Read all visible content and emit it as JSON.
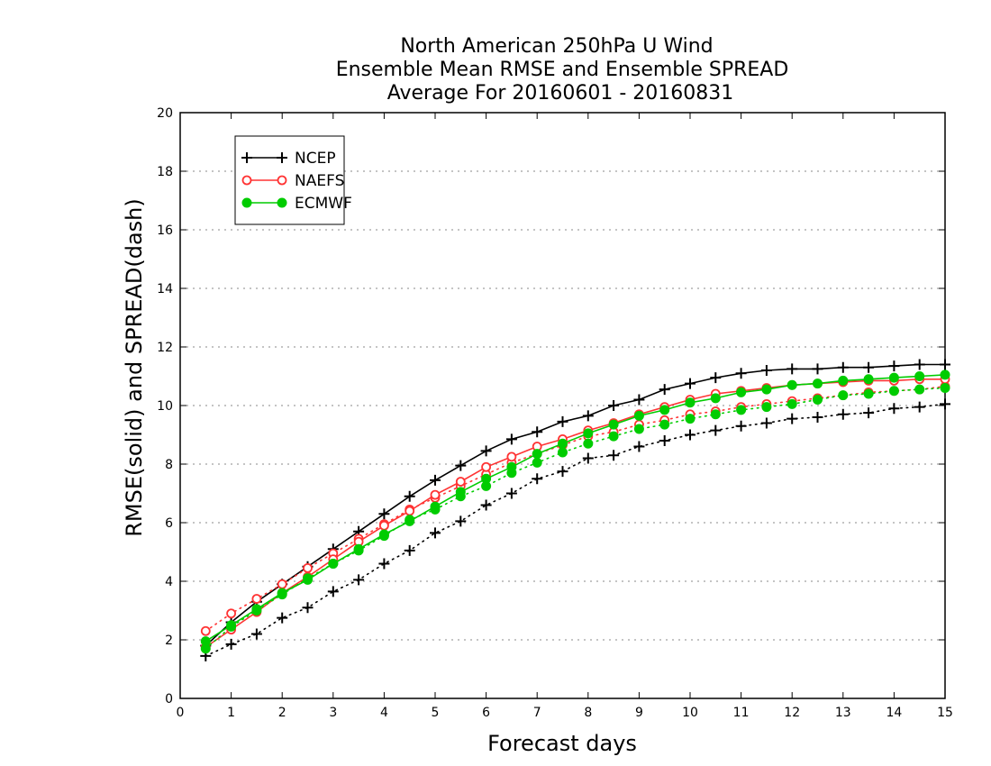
{
  "chart_data": {
    "type": "line",
    "title": [
      "North American 250hPa U Wind",
      "Ensemble Mean RMSE and Ensemble SPREAD",
      "Average For 20160601 - 20160831"
    ],
    "xlabel": "Forecast days",
    "ylabel": "RMSE(solid) and SPREAD(dash)",
    "xlim": [
      0,
      15
    ],
    "ylim": [
      0,
      20
    ],
    "xticks": [
      0,
      1,
      2,
      3,
      4,
      5,
      6,
      7,
      8,
      9,
      10,
      11,
      12,
      13,
      14,
      15
    ],
    "yticks": [
      0,
      2,
      4,
      6,
      8,
      10,
      12,
      14,
      16,
      18,
      20
    ],
    "grid": "horizontal dotted",
    "legend_position": "top-left",
    "x": [
      0.5,
      1,
      1.5,
      2,
      2.5,
      3,
      3.5,
      4,
      4.5,
      5,
      5.5,
      6,
      6.5,
      7,
      7.5,
      8,
      8.5,
      9,
      9.5,
      10,
      10.5,
      11,
      11.5,
      12,
      12.5,
      13,
      13.5,
      14,
      14.5,
      15
    ],
    "series": [
      {
        "name": "NCEP",
        "color": "#000000",
        "marker": "plus",
        "rmse": [
          1.8,
          2.6,
          3.3,
          3.9,
          4.5,
          5.1,
          5.7,
          6.3,
          6.9,
          7.45,
          7.95,
          8.45,
          8.85,
          9.1,
          9.45,
          9.65,
          10.0,
          10.2,
          10.55,
          10.75,
          10.95,
          11.1,
          11.2,
          11.25,
          11.25,
          11.3,
          11.3,
          11.35,
          11.4,
          11.4
        ],
        "spread": [
          1.45,
          1.85,
          2.2,
          2.75,
          3.1,
          3.65,
          4.05,
          4.6,
          5.05,
          5.65,
          6.05,
          6.6,
          7.0,
          7.5,
          7.75,
          8.2,
          8.3,
          8.6,
          8.8,
          9.0,
          9.15,
          9.3,
          9.4,
          9.55,
          9.6,
          9.7,
          9.75,
          9.9,
          9.95,
          10.05
        ]
      },
      {
        "name": "NAEFS",
        "color": "#ff3333",
        "marker": "open-circle",
        "rmse": [
          1.75,
          2.35,
          2.95,
          3.6,
          4.15,
          4.75,
          5.35,
          5.9,
          6.4,
          6.95,
          7.4,
          7.9,
          8.25,
          8.6,
          8.85,
          9.15,
          9.4,
          9.7,
          9.95,
          10.2,
          10.4,
          10.5,
          10.6,
          10.7,
          10.75,
          10.8,
          10.85,
          10.85,
          10.9,
          10.9
        ],
        "spread": [
          2.3,
          2.9,
          3.4,
          3.9,
          4.45,
          4.95,
          5.45,
          5.95,
          6.45,
          6.85,
          7.25,
          7.65,
          8.05,
          8.35,
          8.65,
          8.95,
          9.1,
          9.35,
          9.5,
          9.7,
          9.8,
          9.95,
          10.05,
          10.15,
          10.25,
          10.35,
          10.45,
          10.5,
          10.55,
          10.65
        ]
      },
      {
        "name": "ECMWF",
        "color": "#00cc00",
        "marker": "filled-circle",
        "rmse": [
          1.95,
          2.5,
          3.05,
          3.6,
          4.05,
          4.6,
          5.1,
          5.6,
          6.05,
          6.55,
          7.05,
          7.5,
          7.9,
          8.35,
          8.7,
          9.05,
          9.35,
          9.65,
          9.85,
          10.1,
          10.25,
          10.45,
          10.55,
          10.7,
          10.75,
          10.85,
          10.9,
          10.95,
          11.0,
          11.05
        ],
        "spread": [
          1.7,
          2.45,
          3.0,
          3.55,
          4.1,
          4.6,
          5.05,
          5.55,
          6.1,
          6.45,
          6.9,
          7.25,
          7.7,
          8.05,
          8.4,
          8.7,
          8.95,
          9.2,
          9.35,
          9.55,
          9.7,
          9.85,
          9.95,
          10.05,
          10.2,
          10.35,
          10.4,
          10.5,
          10.55,
          10.6
        ]
      }
    ]
  }
}
